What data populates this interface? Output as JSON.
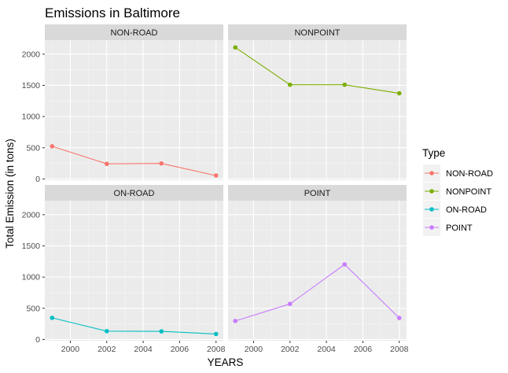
{
  "chart_data": {
    "type": "line",
    "title": "Emissions in Baltimore",
    "xlabel": "YEARS",
    "ylabel": "Total Emission (in tons)",
    "x_ticks": [
      "2000",
      "2002",
      "2004",
      "2006",
      "2008"
    ],
    "y_ticks": [
      "0",
      "500",
      "1000",
      "1500",
      "2000"
    ],
    "xlim": [
      1998.6,
      2008.4
    ],
    "ylim": [
      -20,
      2225
    ],
    "grid": true,
    "legend": {
      "title": "Type",
      "position": "right"
    },
    "x": [
      1999,
      2002,
      2005,
      2008
    ],
    "panels": [
      {
        "label": "NON-ROAD",
        "series": "NON-ROAD",
        "color": "#F8766D",
        "values": [
          523,
          242,
          249,
          55
        ]
      },
      {
        "label": "NONPOINT",
        "series": "NONPOINT",
        "color": "#7CAE00",
        "values": [
          2108,
          1510,
          1510,
          1373
        ]
      },
      {
        "label": "ON-ROAD",
        "series": "ON-ROAD",
        "color": "#00BFC4",
        "values": [
          347,
          134,
          130,
          88
        ]
      },
      {
        "label": "POINT",
        "series": "POINT",
        "color": "#C77CFF",
        "values": [
          297,
          570,
          1203,
          345
        ]
      }
    ],
    "series": [
      {
        "name": "NON-ROAD",
        "color": "#F8766D"
      },
      {
        "name": "NONPOINT",
        "color": "#7CAE00"
      },
      {
        "name": "ON-ROAD",
        "color": "#00BFC4"
      },
      {
        "name": "POINT",
        "color": "#C77CFF"
      }
    ]
  }
}
